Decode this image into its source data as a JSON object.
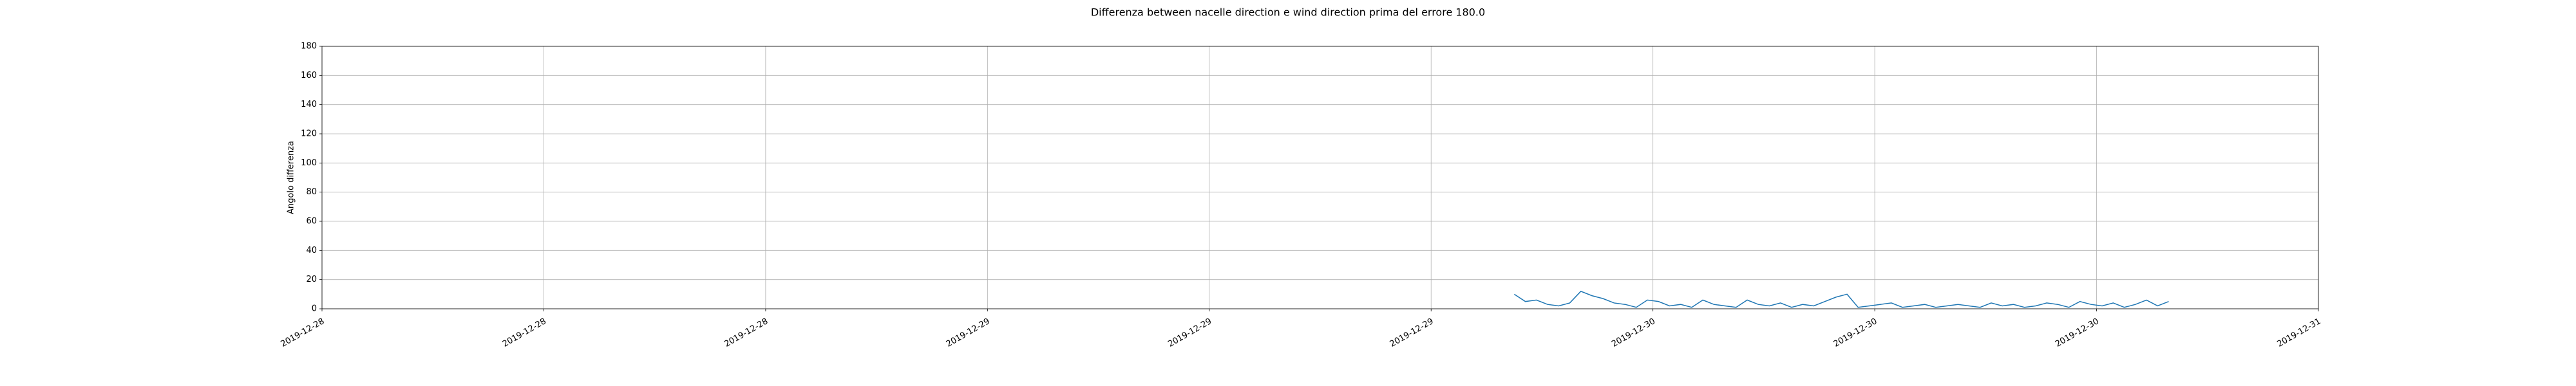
{
  "chart_data": {
    "type": "line",
    "title": "Differenza between nacelle direction e wind direction prima del errore 180.0",
    "ylabel": "Angolo differenza",
    "xlim": [
      0,
      72
    ],
    "xticks": [
      {
        "value": 0,
        "label": "2019-12-28"
      },
      {
        "value": 8,
        "label": "2019-12-28"
      },
      {
        "value": 16,
        "label": "2019-12-28"
      },
      {
        "value": 24,
        "label": "2019-12-29"
      },
      {
        "value": 32,
        "label": "2019-12-29"
      },
      {
        "value": 40,
        "label": "2019-12-29"
      },
      {
        "value": 48,
        "label": "2019-12-30"
      },
      {
        "value": 56,
        "label": "2019-12-30"
      },
      {
        "value": 64,
        "label": "2019-12-30"
      },
      {
        "value": 72,
        "label": "2019-12-31"
      }
    ],
    "ylim": [
      0,
      180
    ],
    "yticks": [
      0,
      20,
      40,
      60,
      80,
      100,
      120,
      140,
      160,
      180
    ],
    "grid": true,
    "x": [
      43.0,
      43.4,
      43.8,
      44.2,
      44.6,
      45.0,
      45.4,
      45.8,
      46.2,
      46.6,
      47.0,
      47.4,
      47.8,
      48.2,
      48.6,
      49.0,
      49.4,
      49.8,
      50.2,
      50.6,
      51.0,
      51.4,
      51.8,
      52.2,
      52.6,
      53.0,
      53.4,
      53.8,
      54.2,
      54.6,
      55.0,
      55.4,
      55.8,
      56.2,
      56.6,
      57.0,
      57.4,
      57.8,
      58.2,
      58.6,
      59.0,
      59.4,
      59.8,
      60.2,
      60.6,
      61.0,
      61.4,
      61.8,
      62.2,
      62.6,
      63.0,
      63.4,
      63.8,
      64.2,
      64.6,
      65.0,
      65.4,
      65.8,
      66.2,
      66.6
    ],
    "series": [
      {
        "color": "#1f77b4",
        "values": [
          10,
          5,
          6,
          3,
          2,
          4,
          12,
          9,
          7,
          4,
          3,
          1,
          6,
          5,
          2,
          3,
          1,
          6,
          3,
          2,
          1,
          6,
          3,
          2,
          4,
          1,
          3,
          2,
          5,
          8,
          10,
          1,
          2,
          3,
          4,
          1,
          2,
          3,
          1,
          2,
          3,
          2,
          1,
          4,
          2,
          3,
          1,
          2,
          4,
          3,
          1,
          5,
          3,
          2,
          4,
          1,
          3,
          6,
          2,
          5
        ]
      }
    ]
  }
}
